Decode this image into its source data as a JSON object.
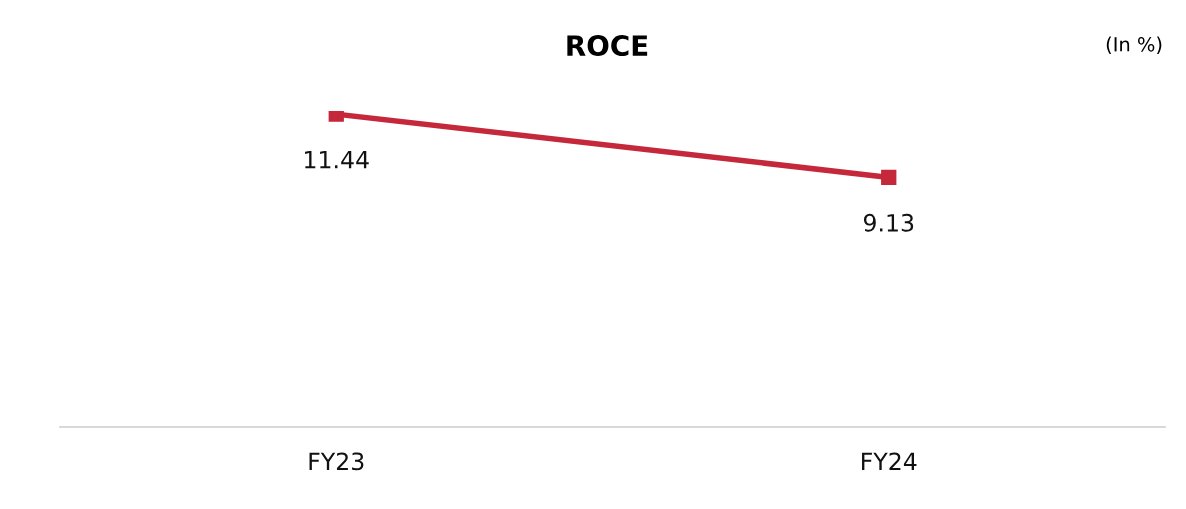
{
  "chart_data": {
    "type": "line",
    "title": "ROCE",
    "annotations": [
      "(In %)"
    ],
    "categories": [
      "FY23",
      "FY24"
    ],
    "series": [
      {
        "color": "#c4283a",
        "values": [
          11.44,
          9.13
        ]
      }
    ],
    "tick_labels": "x",
    "marker": "square",
    "line_style": "solid",
    "data_labels": true,
    "grid": false,
    "legend": false
  }
}
